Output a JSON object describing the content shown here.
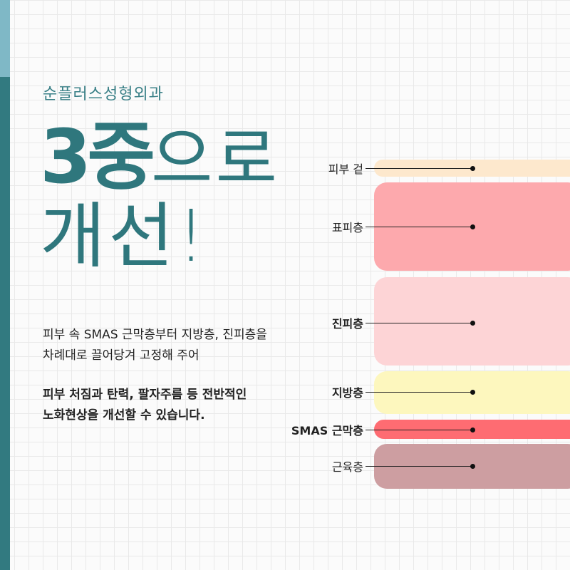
{
  "clinic_name": "순플러스성형외과",
  "headline": {
    "line1_bold": "3중",
    "line1_light": "으로",
    "line2": "개선!"
  },
  "description": {
    "line1": "피부 속 SMAS 근막층부터 지방층, 진피층을",
    "line2": "차례대로 끌어당겨 고정해 주어",
    "bold_line1": "피부 처짐과 탄력, 팔자주름 등 전반적인",
    "bold_line2": "노화현상을 개선할 수 있습니다."
  },
  "layers": [
    {
      "label": "피부 겉",
      "color": "#fde8cd",
      "bold": false
    },
    {
      "label": "표피층",
      "color": "#fda9ad",
      "bold": false
    },
    {
      "label": "진피층",
      "color": "#fdd4d6",
      "bold": true
    },
    {
      "label": "지방층",
      "color": "#fdf7be",
      "bold": true
    },
    {
      "label": "SMAS 근막층",
      "color": "#fe6c72",
      "bold": true
    },
    {
      "label": "근육층",
      "color": "#cd9ea1",
      "bold": false
    }
  ],
  "colors": {
    "accent": "#2f777d",
    "bar_light": "#7fb8c6"
  }
}
